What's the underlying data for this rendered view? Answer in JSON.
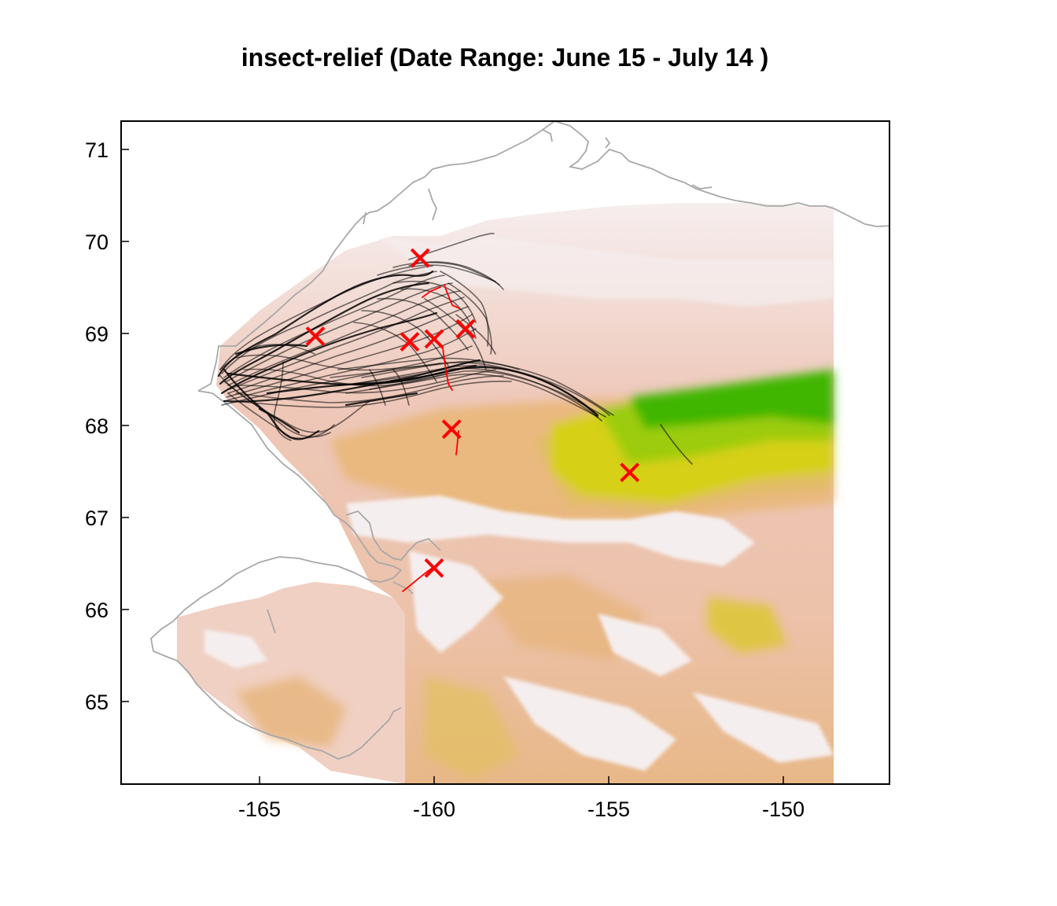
{
  "title": "insect-relief (Date Range:  June 15 - July 14 )",
  "map": {
    "xlim": [
      -169,
      -146.7
    ],
    "ylim": [
      64.1,
      71.3
    ],
    "x_ticks": [
      "-165",
      "-160",
      "-155",
      "-150"
    ],
    "y_ticks": [
      "71",
      "70",
      "69",
      "68",
      "67",
      "66",
      "65"
    ],
    "relief_colors": [
      "#f3e8e8",
      "#eec4b4",
      "#e6b070",
      "#d8d020",
      "#40b800"
    ],
    "coastline_color": "#a8a8a8",
    "track_color": "#000000",
    "marker_color": "#ff0000"
  },
  "markers": [
    {
      "lon": -160.4,
      "lat": 69.82
    },
    {
      "lon": -163.4,
      "lat": 68.97
    },
    {
      "lon": -160.7,
      "lat": 68.91
    },
    {
      "lon": -160.0,
      "lat": 68.94
    },
    {
      "lon": -159.1,
      "lat": 69.05
    },
    {
      "lon": -159.5,
      "lat": 67.96
    },
    {
      "lon": -154.4,
      "lat": 67.49
    },
    {
      "lon": -160.0,
      "lat": 66.45
    }
  ]
}
